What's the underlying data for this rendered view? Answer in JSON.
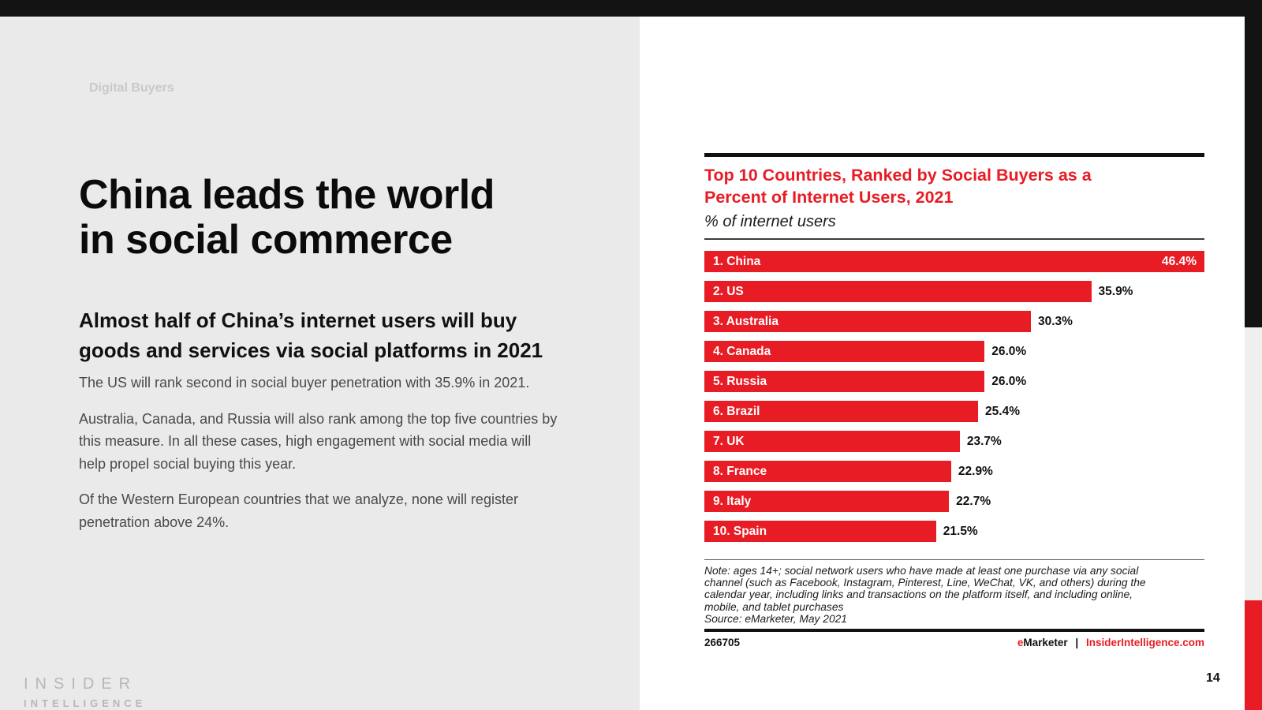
{
  "slide": {
    "eyebrow": "Digital Buyers",
    "title_lines": [
      "China leads the world",
      "in social commerce"
    ],
    "subtitle_lines": [
      "Almost half of China’s internet users will buy",
      "goods and services via social platforms in 2021"
    ],
    "paragraphs": [
      "The US will rank second in social buyer penetration with 35.9% in 2021.",
      "Australia, Canada, and Russia will also rank among the top five countries by this measure. In all these cases, high engagement with social media will help propel social buying this year.",
      "Of the Western European countries that we analyze, none will register penetration above 24%."
    ],
    "logo_line1": "INSIDER",
    "logo_line2": "INTELLIGENCE",
    "page_number": "14"
  },
  "chart": {
    "title_lines": [
      "Top 10 Countries, Ranked by Social Buyers as a",
      "Percent of Internet Users, 2021"
    ],
    "subtitle": "% of internet users",
    "note_lines": [
      "Note: ages 14+; social network users who have made at least one purchase via any social",
      "channel (such as Facebook, Instagram, Pinterest, Line, WeChat, VK, and others) during the",
      "calendar year, including links and transactions on the platform itself, and including online,",
      "mobile, and tablet purchases"
    ],
    "source": "Source: eMarketer, May 2021",
    "chart_id": "266705",
    "brand_e": "e",
    "brand_marketer": "Marketer",
    "brand_separator": "|",
    "brand_site": "InsiderIntelligence.com"
  },
  "chart_data": {
    "type": "bar",
    "orientation": "horizontal",
    "title": "Top 10 Countries, Ranked by Social Buyers as a Percent of Internet Users, 2021",
    "xlabel": "% of internet users",
    "ylabel": "",
    "xlim": [
      0,
      46.4
    ],
    "grid": false,
    "legend": false,
    "categories": [
      "1. China",
      "2. US",
      "3. Australia",
      "4. Canada",
      "5. Russia",
      "6. Brazil",
      "7. UK",
      "8. France",
      "9. Italy",
      "10. Spain"
    ],
    "values": [
      46.4,
      35.9,
      30.3,
      26.0,
      26.0,
      25.4,
      23.7,
      22.9,
      22.7,
      21.5
    ],
    "value_labels": [
      "46.4%",
      "35.9%",
      "30.3%",
      "26.0%",
      "26.0%",
      "25.4%",
      "23.7%",
      "22.9%",
      "22.7%",
      "21.5%"
    ],
    "value_inside_index": 0,
    "bar_color": "#e81c24",
    "bar_label_color": "#ffffff",
    "value_label_color": "#111111"
  },
  "colors": {
    "accent_red": "#e81c24",
    "top_bar": "#131313",
    "left_background": "#eaeaea",
    "edge_strip_black": "#131313",
    "edge_strip_gray": "#efefef",
    "edge_strip_red": "#e81c24"
  }
}
